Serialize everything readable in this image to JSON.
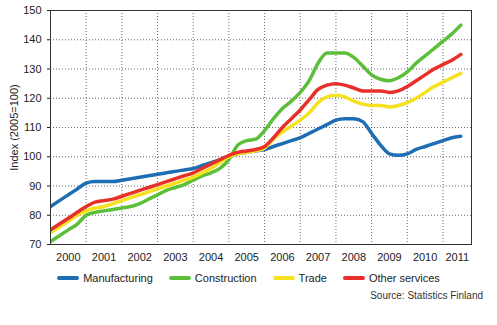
{
  "chart_data": {
    "type": "line",
    "y_label": "Index (2005=100)",
    "caption": "Source: Statistics Finland",
    "x": [
      2000,
      2000.25,
      2000.5,
      2000.75,
      2001,
      2001.25,
      2001.5,
      2001.75,
      2002,
      2002.25,
      2002.5,
      2002.75,
      2003,
      2003.25,
      2003.5,
      2003.75,
      2004,
      2004.25,
      2004.5,
      2004.75,
      2005,
      2005.25,
      2005.5,
      2005.75,
      2006,
      2006.25,
      2006.5,
      2006.75,
      2007,
      2007.25,
      2007.5,
      2007.75,
      2008,
      2008.25,
      2008.5,
      2008.75,
      2009,
      2009.25,
      2009.5,
      2009.75,
      2010,
      2010.25,
      2010.5,
      2010.75,
      2011,
      2011.25,
      2011.5
    ],
    "xlim": [
      2000,
      2011.8
    ],
    "xticks": [
      {
        "value": 2000.5,
        "label": "2000"
      },
      {
        "value": 2001.5,
        "label": "2001"
      },
      {
        "value": 2002.5,
        "label": "2002"
      },
      {
        "value": 2003.5,
        "label": "2003"
      },
      {
        "value": 2004.5,
        "label": "2004"
      },
      {
        "value": 2005.5,
        "label": "2005"
      },
      {
        "value": 2006.5,
        "label": "2006"
      },
      {
        "value": 2007.5,
        "label": "2007"
      },
      {
        "value": 2008.5,
        "label": "2008"
      },
      {
        "value": 2009.5,
        "label": "2009"
      },
      {
        "value": 2010.5,
        "label": "2010"
      },
      {
        "value": 2011.4,
        "label": "2011"
      }
    ],
    "ylim": [
      70,
      150
    ],
    "yticks": [
      70,
      80,
      90,
      100,
      110,
      120,
      130,
      140,
      150
    ],
    "grid": true,
    "legend": "bottom",
    "series": [
      {
        "name": "Manufacturing",
        "color": "#1f6eb4",
        "values": [
          83,
          85,
          87,
          89,
          91,
          91.5,
          91.5,
          91.5,
          92,
          92.5,
          93,
          93.5,
          94,
          94.5,
          95,
          95.5,
          96,
          97,
          98,
          99,
          100,
          101,
          101.5,
          102,
          102.5,
          103.5,
          104.5,
          105.5,
          106.5,
          108,
          109.5,
          111,
          112.5,
          113,
          113,
          112,
          108,
          104,
          101,
          100.5,
          101,
          102.5,
          103.5,
          104.5,
          105.5,
          106.5,
          107
        ]
      },
      {
        "name": "Construction",
        "color": "#5cbf3a",
        "values": [
          71,
          73,
          75,
          77,
          80,
          81,
          81.5,
          82,
          82.5,
          83,
          84,
          85.5,
          87,
          88.5,
          89.5,
          90.5,
          92,
          93.5,
          94.5,
          96,
          99,
          104,
          105.5,
          106,
          109,
          113,
          116.5,
          119,
          122,
          126,
          132,
          135.5,
          135.5,
          135.5,
          134,
          131,
          128,
          126.5,
          126,
          127,
          129,
          132,
          134.5,
          137,
          139.5,
          142,
          145
        ]
      },
      {
        "name": "Trade",
        "color": "#f5e11e",
        "values": [
          74,
          76,
          78,
          80,
          81.5,
          82.5,
          83,
          84,
          85,
          86,
          87,
          88,
          89,
          90,
          91,
          92,
          93,
          94.5,
          96,
          98,
          100,
          101,
          101.5,
          102,
          103,
          106,
          108.5,
          110.5,
          112.5,
          115,
          118.5,
          120.5,
          121,
          120.5,
          119,
          118,
          117.5,
          117.5,
          117,
          117.5,
          118.5,
          120,
          122,
          124,
          125.5,
          127,
          128.5
        ]
      },
      {
        "name": "Other services",
        "color": "#e8302a",
        "values": [
          75,
          77,
          79,
          81,
          83,
          84.5,
          85,
          85.5,
          86.5,
          87.5,
          88.5,
          89.5,
          90.5,
          91.5,
          92.5,
          93.5,
          94.5,
          96,
          97.5,
          99,
          100.5,
          101.5,
          102,
          102.5,
          103.5,
          106.5,
          110,
          113,
          116,
          119.5,
          123,
          124.5,
          125,
          124.5,
          123.5,
          122.5,
          122.5,
          122.5,
          122,
          122.5,
          124,
          126,
          128,
          130,
          131.5,
          133,
          135
        ]
      }
    ]
  }
}
